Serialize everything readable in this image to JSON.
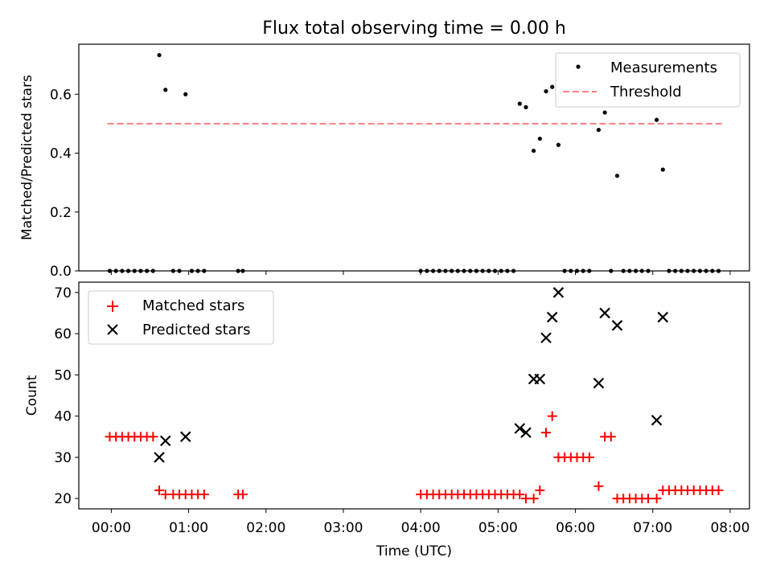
{
  "chart_data": [
    {
      "type": "scatter",
      "title": "Flux total observing time = 0.00 h",
      "xlabel": "",
      "ylabel": "Matched/Predicted stars",
      "xlim": [
        -0.42,
        8.25
      ],
      "ylim": [
        0.0,
        0.77
      ],
      "yticks": [
        0.0,
        0.2,
        0.4,
        0.6
      ],
      "yticklabels": [
        "0.0",
        "0.2",
        "0.4",
        "0.6"
      ],
      "legend_position": "top-right",
      "legend": [
        "Measurements",
        "Threshold"
      ],
      "threshold": {
        "name": "Threshold",
        "y": 0.5,
        "x_range": [
          -0.05,
          7.9
        ],
        "color": "#ff8080",
        "style": "dashed"
      },
      "series": [
        {
          "name": "Measurements",
          "color": "#000000",
          "marker": "dot",
          "points": [
            [
              -0.02,
              0.0
            ],
            [
              0.06,
              0.0
            ],
            [
              0.14,
              0.0
            ],
            [
              0.22,
              0.0
            ],
            [
              0.3,
              0.0
            ],
            [
              0.38,
              0.0
            ],
            [
              0.46,
              0.0
            ],
            [
              0.54,
              0.0
            ],
            [
              0.62,
              0.733
            ],
            [
              0.7,
              0.615
            ],
            [
              0.8,
              0.0
            ],
            [
              0.88,
              0.0
            ],
            [
              0.96,
              0.6
            ],
            [
              1.04,
              0.0
            ],
            [
              1.12,
              0.0
            ],
            [
              1.2,
              0.0
            ],
            [
              1.64,
              0.0
            ],
            [
              1.7,
              0.0
            ],
            [
              4.0,
              0.0
            ],
            [
              4.08,
              0.0
            ],
            [
              4.16,
              0.0
            ],
            [
              4.24,
              0.0
            ],
            [
              4.32,
              0.0
            ],
            [
              4.4,
              0.0
            ],
            [
              4.48,
              0.0
            ],
            [
              4.56,
              0.0
            ],
            [
              4.64,
              0.0
            ],
            [
              4.72,
              0.0
            ],
            [
              4.8,
              0.0
            ],
            [
              4.88,
              0.0
            ],
            [
              4.96,
              0.0
            ],
            [
              5.04,
              0.0
            ],
            [
              5.12,
              0.0
            ],
            [
              5.2,
              0.0
            ],
            [
              5.28,
              0.568
            ],
            [
              5.36,
              0.556
            ],
            [
              5.46,
              0.408
            ],
            [
              5.54,
              0.449
            ],
            [
              5.62,
              0.61
            ],
            [
              5.7,
              0.625
            ],
            [
              5.78,
              0.428
            ],
            [
              5.86,
              0.0
            ],
            [
              5.94,
              0.0
            ],
            [
              6.02,
              0.0
            ],
            [
              6.1,
              0.0
            ],
            [
              6.18,
              0.0
            ],
            [
              6.3,
              0.479
            ],
            [
              6.38,
              0.538
            ],
            [
              6.46,
              0.0
            ],
            [
              6.54,
              0.323
            ],
            [
              6.62,
              0.0
            ],
            [
              6.7,
              0.0
            ],
            [
              6.78,
              0.0
            ],
            [
              6.86,
              0.0
            ],
            [
              6.94,
              0.0
            ],
            [
              7.05,
              0.513
            ],
            [
              7.13,
              0.344
            ],
            [
              7.21,
              0.0
            ],
            [
              7.29,
              0.0
            ],
            [
              7.37,
              0.0
            ],
            [
              7.45,
              0.0
            ],
            [
              7.53,
              0.0
            ],
            [
              7.61,
              0.0
            ],
            [
              7.69,
              0.0
            ],
            [
              7.77,
              0.0
            ],
            [
              7.85,
              0.0
            ]
          ]
        }
      ]
    },
    {
      "type": "scatter",
      "title": "",
      "xlabel": "Time (UTC)",
      "ylabel": "Count",
      "xlim": [
        -0.42,
        8.25
      ],
      "ylim": [
        17.5,
        72.5
      ],
      "yticks": [
        20,
        30,
        40,
        50,
        60,
        70
      ],
      "yticklabels": [
        "20",
        "30",
        "40",
        "50",
        "60",
        "70"
      ],
      "xticks": [
        0,
        1,
        2,
        3,
        4,
        5,
        6,
        7,
        8
      ],
      "xticklabels": [
        "00:00",
        "01:00",
        "02:00",
        "03:00",
        "04:00",
        "05:00",
        "06:00",
        "07:00",
        "08:00"
      ],
      "legend_position": "top-left",
      "legend": [
        "Matched stars",
        "Predicted stars"
      ],
      "series": [
        {
          "name": "Matched stars",
          "color": "#ff0000",
          "marker": "plus",
          "points": [
            [
              -0.02,
              35
            ],
            [
              0.06,
              35
            ],
            [
              0.14,
              35
            ],
            [
              0.22,
              35
            ],
            [
              0.3,
              35
            ],
            [
              0.38,
              35
            ],
            [
              0.46,
              35
            ],
            [
              0.54,
              35
            ],
            [
              0.62,
              22
            ],
            [
              0.7,
              21
            ],
            [
              0.8,
              21
            ],
            [
              0.88,
              21
            ],
            [
              0.96,
              21
            ],
            [
              1.04,
              21
            ],
            [
              1.12,
              21
            ],
            [
              1.2,
              21
            ],
            [
              1.64,
              21
            ],
            [
              1.7,
              21
            ],
            [
              4.0,
              21
            ],
            [
              4.08,
              21
            ],
            [
              4.16,
              21
            ],
            [
              4.24,
              21
            ],
            [
              4.32,
              21
            ],
            [
              4.4,
              21
            ],
            [
              4.48,
              21
            ],
            [
              4.56,
              21
            ],
            [
              4.64,
              21
            ],
            [
              4.72,
              21
            ],
            [
              4.8,
              21
            ],
            [
              4.88,
              21
            ],
            [
              4.96,
              21
            ],
            [
              5.04,
              21
            ],
            [
              5.12,
              21
            ],
            [
              5.2,
              21
            ],
            [
              5.28,
              21
            ],
            [
              5.36,
              20
            ],
            [
              5.46,
              20
            ],
            [
              5.54,
              22
            ],
            [
              5.62,
              36
            ],
            [
              5.7,
              40
            ],
            [
              5.78,
              30
            ],
            [
              5.86,
              30
            ],
            [
              5.94,
              30
            ],
            [
              6.02,
              30
            ],
            [
              6.1,
              30
            ],
            [
              6.18,
              30
            ],
            [
              6.3,
              23
            ],
            [
              6.38,
              35
            ],
            [
              6.46,
              35
            ],
            [
              6.54,
              20
            ],
            [
              6.62,
              20
            ],
            [
              6.7,
              20
            ],
            [
              6.78,
              20
            ],
            [
              6.86,
              20
            ],
            [
              6.94,
              20
            ],
            [
              7.05,
              20
            ],
            [
              7.13,
              22
            ],
            [
              7.21,
              22
            ],
            [
              7.29,
              22
            ],
            [
              7.37,
              22
            ],
            [
              7.45,
              22
            ],
            [
              7.53,
              22
            ],
            [
              7.61,
              22
            ],
            [
              7.69,
              22
            ],
            [
              7.77,
              22
            ],
            [
              7.85,
              22
            ]
          ]
        },
        {
          "name": "Predicted stars",
          "color": "#000000",
          "marker": "x",
          "points": [
            [
              0.62,
              30
            ],
            [
              0.7,
              34
            ],
            [
              0.96,
              35
            ],
            [
              5.28,
              37
            ],
            [
              5.36,
              36
            ],
            [
              5.46,
              49
            ],
            [
              5.54,
              49
            ],
            [
              5.62,
              59
            ],
            [
              5.7,
              64
            ],
            [
              5.78,
              70
            ],
            [
              6.3,
              48
            ],
            [
              6.38,
              65
            ],
            [
              6.54,
              62
            ],
            [
              7.05,
              39
            ],
            [
              7.13,
              64
            ]
          ]
        }
      ]
    }
  ]
}
